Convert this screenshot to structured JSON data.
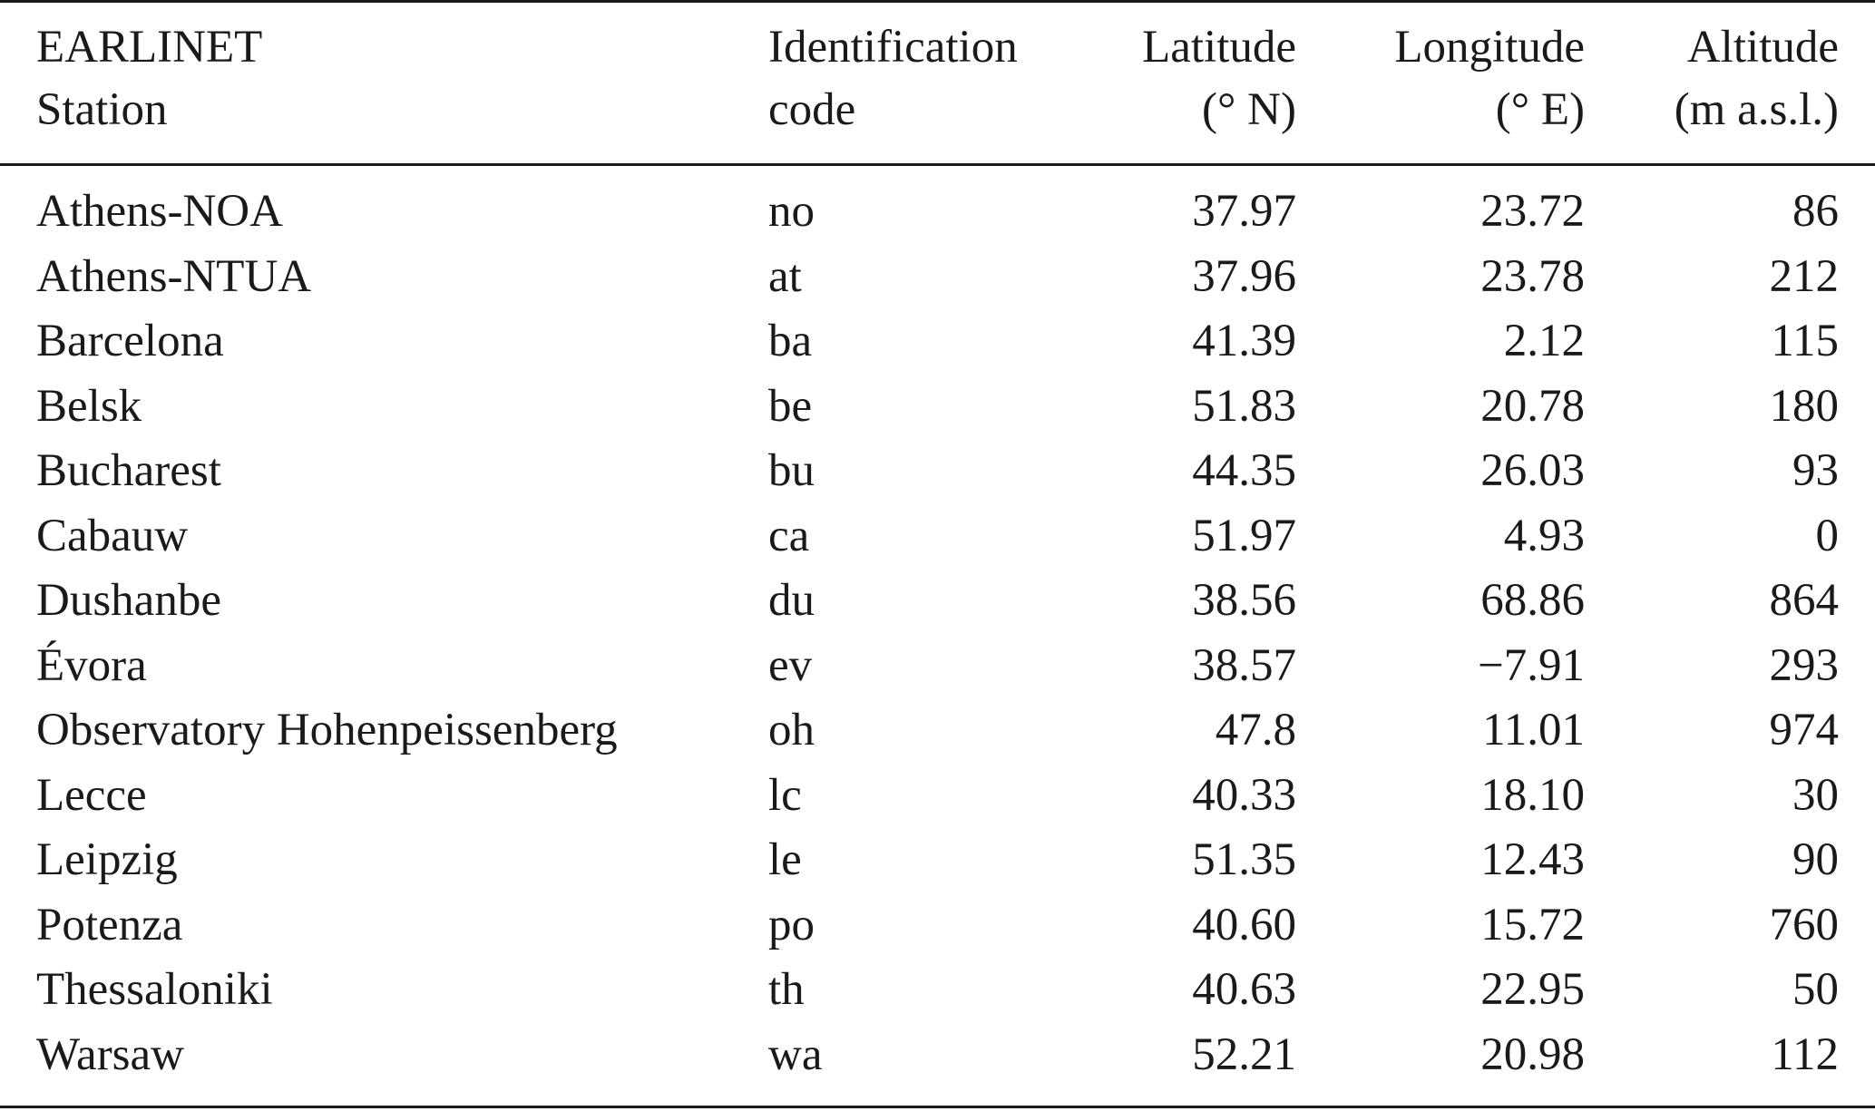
{
  "table": {
    "headers": {
      "station": [
        "EARLINET",
        "Station"
      ],
      "code": [
        "Identification",
        "code"
      ],
      "latitude": [
        "Latitude",
        "(° N)"
      ],
      "longitude": [
        "Longitude",
        "(° E)"
      ],
      "altitude": [
        "Altitude",
        "(m a.s.l.)"
      ]
    },
    "rows": [
      {
        "station": "Athens-NOA",
        "code": "no",
        "lat": "37.97",
        "lon": "23.72",
        "alt": "86"
      },
      {
        "station": "Athens-NTUA",
        "code": "at",
        "lat": "37.96",
        "lon": "23.78",
        "alt": "212"
      },
      {
        "station": "Barcelona",
        "code": "ba",
        "lat": "41.39",
        "lon": "2.12",
        "alt": "115"
      },
      {
        "station": "Belsk",
        "code": "be",
        "lat": "51.83",
        "lon": "20.78",
        "alt": "180"
      },
      {
        "station": "Bucharest",
        "code": "bu",
        "lat": "44.35",
        "lon": "26.03",
        "alt": "93"
      },
      {
        "station": "Cabauw",
        "code": "ca",
        "lat": "51.97",
        "lon": "4.93",
        "alt": "0"
      },
      {
        "station": "Dushanbe",
        "code": "du",
        "lat": "38.56",
        "lon": "68.86",
        "alt": "864"
      },
      {
        "station": "Évora",
        "code": "ev",
        "lat": "38.57",
        "lon": "−7.91",
        "alt": "293"
      },
      {
        "station": "Observatory Hohenpeissenberg",
        "code": "oh",
        "lat": "47.8",
        "lon": "11.01",
        "alt": "974"
      },
      {
        "station": "Lecce",
        "code": "lc",
        "lat": "40.33",
        "lon": "18.10",
        "alt": "30"
      },
      {
        "station": "Leipzig",
        "code": "le",
        "lat": "51.35",
        "lon": "12.43",
        "alt": "90"
      },
      {
        "station": "Potenza",
        "code": "po",
        "lat": "40.60",
        "lon": "15.72",
        "alt": "760"
      },
      {
        "station": "Thessaloniki",
        "code": "th",
        "lat": "40.63",
        "lon": "22.95",
        "alt": "50"
      },
      {
        "station": "Warsaw",
        "code": "wa",
        "lat": "52.21",
        "lon": "20.98",
        "alt": "112"
      }
    ]
  }
}
